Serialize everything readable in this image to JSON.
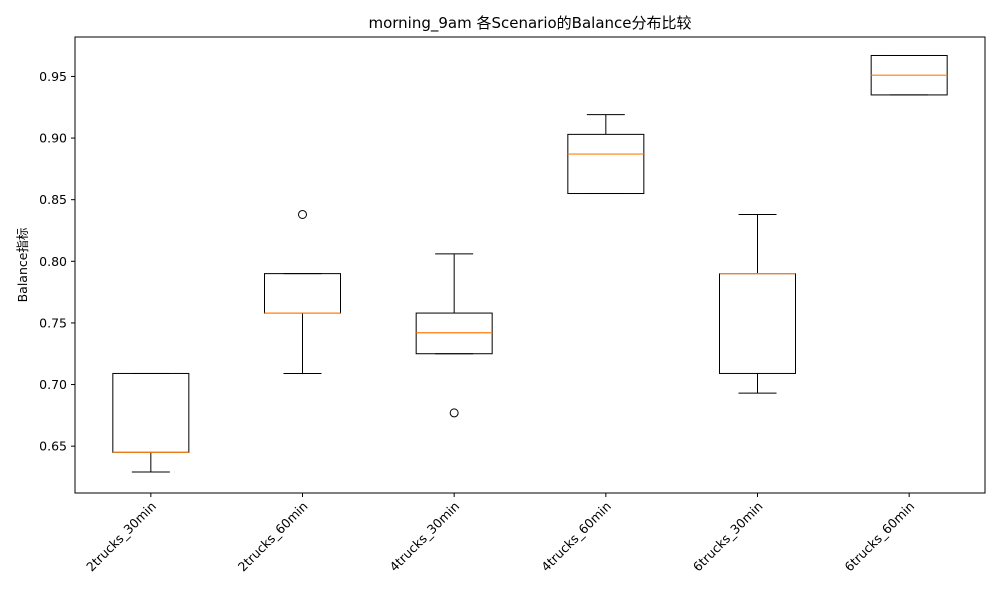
{
  "chart_data": {
    "type": "boxplot",
    "title": "morning_9am 各Scenario的Balance分布比较",
    "xlabel": "",
    "ylabel": "Balance指标",
    "ylim": [
      0.612,
      0.982
    ],
    "yticks": [
      0.65,
      0.7,
      0.75,
      0.8,
      0.85,
      0.9,
      0.95
    ],
    "ytick_labels": [
      "0.65",
      "0.70",
      "0.75",
      "0.80",
      "0.85",
      "0.90",
      "0.95"
    ],
    "grid": false,
    "colors": {
      "box": "#000000",
      "median": "#ff7f0e",
      "background": "#ffffff"
    },
    "categories": [
      "2trucks_30min",
      "2trucks_60min",
      "4trucks_30min",
      "4trucks_60min",
      "6trucks_30min",
      "6trucks_60min"
    ],
    "boxes": [
      {
        "whisker_low": 0.629,
        "q1": 0.645,
        "median": 0.645,
        "q3": 0.709,
        "whisker_high": 0.709,
        "outliers": []
      },
      {
        "whisker_low": 0.709,
        "q1": 0.758,
        "median": 0.758,
        "q3": 0.79,
        "whisker_high": 0.79,
        "outliers": [
          0.838
        ]
      },
      {
        "whisker_low": 0.725,
        "q1": 0.725,
        "median": 0.742,
        "q3": 0.758,
        "whisker_high": 0.806,
        "outliers": [
          0.677
        ]
      },
      {
        "whisker_low": 0.855,
        "q1": 0.855,
        "median": 0.887,
        "q3": 0.903,
        "whisker_high": 0.919,
        "outliers": []
      },
      {
        "whisker_low": 0.693,
        "q1": 0.709,
        "median": 0.79,
        "q3": 0.79,
        "whisker_high": 0.838,
        "outliers": []
      },
      {
        "whisker_low": 0.935,
        "q1": 0.935,
        "median": 0.951,
        "q3": 0.967,
        "whisker_high": 0.967,
        "outliers": []
      }
    ]
  }
}
